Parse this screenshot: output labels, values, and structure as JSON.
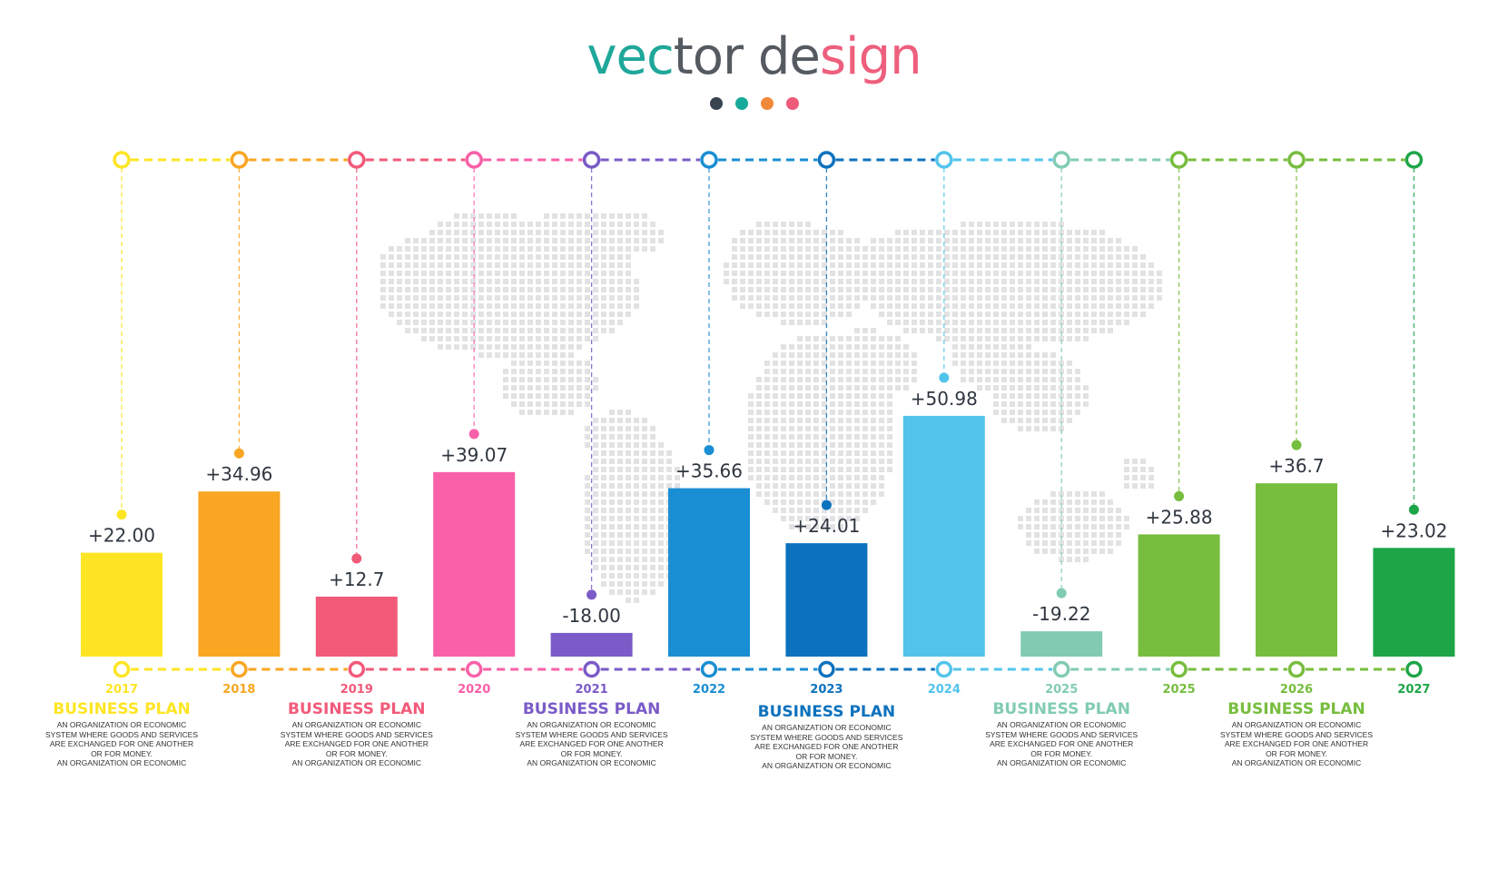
{
  "title": {
    "part1": "vector de",
    "part2": "sign",
    "color1": "#1fa79a",
    "color2": "#555a61",
    "color3": "#ee5f7d"
  },
  "decorative_dots": [
    "#3a4350",
    "#17a99a",
    "#f08a3a",
    "#ef5a7a"
  ],
  "chart_data": {
    "type": "bar",
    "categories": [
      "2017",
      "2018",
      "2019",
      "2020",
      "2021",
      "2022",
      "2023",
      "2024",
      "2025",
      "2025",
      "2026",
      "2027"
    ],
    "values": [
      22.0,
      34.96,
      12.7,
      39.07,
      -18.0,
      35.66,
      24.01,
      50.98,
      -19.22,
      25.88,
      36.7,
      23.02
    ],
    "value_labels": [
      "+22.00",
      "+34.96",
      "+12.7",
      "+39.07",
      "-18.00",
      "+35.66",
      "+24.01",
      "+50.98",
      "-19.22",
      "+25.88",
      "+36.7",
      "+23.02"
    ],
    "colors": [
      "#fee524",
      "#f9a623",
      "#f25a7a",
      "#f860a8",
      "#7a5bc7",
      "#1a8ed2",
      "#0d72bd",
      "#52c4ec",
      "#82cbb3",
      "#77bd3e",
      "#77bd3e",
      "#1ea548"
    ],
    "title": "vector design",
    "xlabel": "",
    "ylabel": "",
    "grid": false,
    "legend": "none"
  },
  "descriptions": [
    {
      "heading": "BUSINESS PLAN",
      "color": "#fee524",
      "body": [
        "AN ORGANIZATION OR ECONOMIC",
        "SYSTEM WHERE GOODS AND SERVICES",
        "ARE EXCHANGED FOR ONE ANOTHER",
        "OR FOR MONEY.",
        "AN ORGANIZATION OR ECONOMIC"
      ]
    },
    {
      "heading": "BUSINESS PLAN",
      "color": "#f25a7a",
      "body": [
        "AN ORGANIZATION OR ECONOMIC",
        "SYSTEM WHERE GOODS AND SERVICES",
        "ARE EXCHANGED FOR ONE ANOTHER",
        "OR FOR MONEY.",
        "AN ORGANIZATION OR ECONOMIC"
      ]
    },
    {
      "heading": "BUSINESS PLAN",
      "color": "#7a5bc7",
      "body": [
        "AN ORGANIZATION OR ECONOMIC",
        "SYSTEM WHERE GOODS AND SERVICES",
        "ARE EXCHANGED FOR ONE ANOTHER",
        "OR FOR MONEY.",
        "AN ORGANIZATION OR ECONOMIC"
      ]
    },
    {
      "heading": "BUSINESS PLAN",
      "color": "#0d72bd",
      "body": [
        "AN ORGANIZATION OR ECONOMIC",
        "SYSTEM WHERE GOODS AND SERVICES",
        "ARE EXCHANGED FOR ONE ANOTHER",
        "OR FOR MONEY.",
        "AN ORGANIZATION OR ECONOMIC"
      ]
    },
    {
      "heading": "BUSINESS PLAN",
      "color": "#82cbb3",
      "body": [
        "AN ORGANIZATION OR ECONOMIC",
        "SYSTEM WHERE GOODS AND SERVICES",
        "ARE EXCHANGED FOR ONE ANOTHER",
        "OR FOR MONEY.",
        "AN ORGANIZATION OR ECONOMIC"
      ]
    },
    {
      "heading": "BUSINESS PLAN",
      "color": "#77bd3e",
      "body": [
        "AN ORGANIZATION OR ECONOMIC",
        "SYSTEM WHERE GOODS AND SERVICES",
        "ARE EXCHANGED FOR ONE ANOTHER",
        "OR FOR MONEY.",
        "AN ORGANIZATION OR ECONOMIC"
      ]
    }
  ]
}
